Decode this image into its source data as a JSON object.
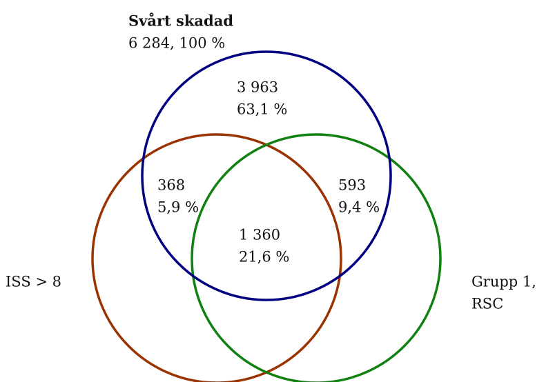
{
  "venn": {
    "sets": [
      {
        "name": "Svårt skadad",
        "total": "6 284, 100 %"
      },
      {
        "name": "ISS > 8"
      },
      {
        "name_lines": [
          "Grupp 1,",
          "RSC"
        ]
      }
    ],
    "regions": [
      {
        "count": "3 963",
        "percent": "63,1 %"
      },
      {
        "count": "368",
        "percent": "5,9 %"
      },
      {
        "count": "593",
        "percent": "9,4 %"
      },
      {
        "count": "1 360",
        "percent": "21,6 %"
      }
    ]
  }
}
